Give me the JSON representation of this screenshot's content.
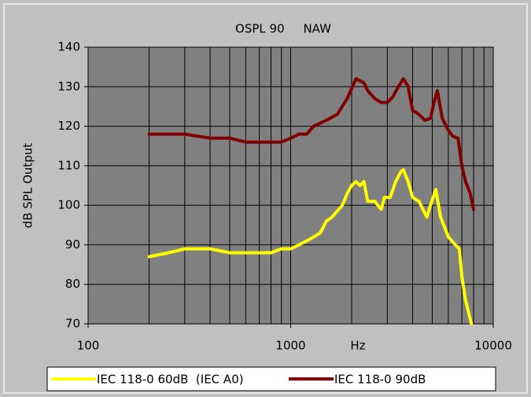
{
  "chart_data": {
    "type": "line",
    "title": "OSPL 90     NAW",
    "x_label": "Hz",
    "y_label": "dB SPL Output",
    "x_log": true,
    "grid": true,
    "xlim": [
      100,
      10000
    ],
    "xticks": [
      100,
      1000,
      10000
    ],
    "xminor_ticks": [
      200,
      300,
      400,
      500,
      600,
      700,
      800,
      900,
      2000,
      3000,
      4000,
      5000,
      6000,
      7000,
      8000,
      9000
    ],
    "ylim": [
      70,
      140
    ],
    "yticks": [
      70,
      80,
      90,
      100,
      110,
      120,
      130,
      140
    ],
    "legend": "bottom",
    "series": [
      {
        "name": "IEC 118-0 60dB  (IEC A0)",
        "color": "#ffff00",
        "x": [
          200,
          250,
          300,
          400,
          500,
          600,
          700,
          800,
          900,
          1000,
          1100,
          1250,
          1400,
          1500,
          1600,
          1800,
          1900,
          2000,
          2100,
          2200,
          2300,
          2400,
          2600,
          2800,
          2900,
          3100,
          3300,
          3500,
          3600,
          3800,
          4000,
          4300,
          4700,
          4900,
          5200,
          5500,
          6000,
          6500,
          6800,
          7000,
          7300,
          7800
        ],
        "values": [
          87,
          88,
          89,
          89,
          88,
          88,
          88,
          88,
          89,
          89,
          90,
          91.5,
          93,
          96,
          97,
          100,
          103,
          105,
          106,
          105,
          106,
          101,
          101,
          99,
          102,
          102,
          106,
          108.5,
          109,
          106,
          102,
          101,
          97,
          100,
          104,
          97,
          92,
          90,
          89,
          82,
          76,
          70
        ]
      },
      {
        "name": "IEC 118-0 90dB",
        "color": "#800000",
        "x": [
          200,
          300,
          400,
          500,
          600,
          700,
          800,
          900,
          1000,
          1100,
          1200,
          1300,
          1500,
          1700,
          1900,
          2100,
          2300,
          2400,
          2600,
          2800,
          3000,
          3200,
          3400,
          3600,
          3800,
          4000,
          4300,
          4600,
          4900,
          5100,
          5300,
          5600,
          6000,
          6300,
          6700,
          7000,
          7300,
          7700,
          8000
        ],
        "values": [
          118,
          118,
          117,
          117,
          116,
          116,
          116,
          116,
          117,
          118,
          118,
          120,
          121.5,
          123,
          127,
          132,
          131,
          129,
          127,
          126,
          126,
          127.5,
          130,
          132,
          130,
          124,
          123,
          121.5,
          122,
          126,
          129,
          122,
          119,
          117.5,
          117,
          110,
          106,
          103,
          99
        ]
      }
    ]
  }
}
